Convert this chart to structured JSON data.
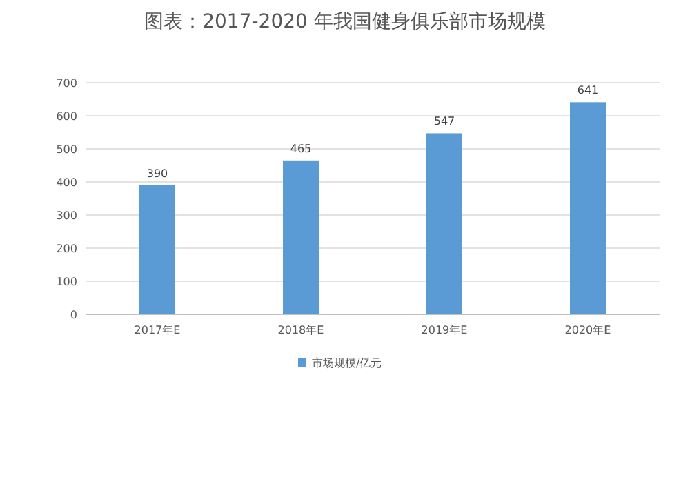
{
  "chart_data": {
    "type": "bar",
    "title": "图表：2017-2020 年我国健身俱乐部市场规模",
    "categories": [
      "2017年E",
      "2018年E",
      "2019年E",
      "2020年E"
    ],
    "series": [
      {
        "name": "市场规模/亿元",
        "color": "#5b9bd5",
        "values": [
          390,
          465,
          547,
          641
        ]
      }
    ],
    "ylim": [
      0,
      700
    ],
    "yticks": [
      0,
      100,
      200,
      300,
      400,
      500,
      600,
      700
    ],
    "grid": "y",
    "legend": "bottom",
    "data_labels": true
  }
}
